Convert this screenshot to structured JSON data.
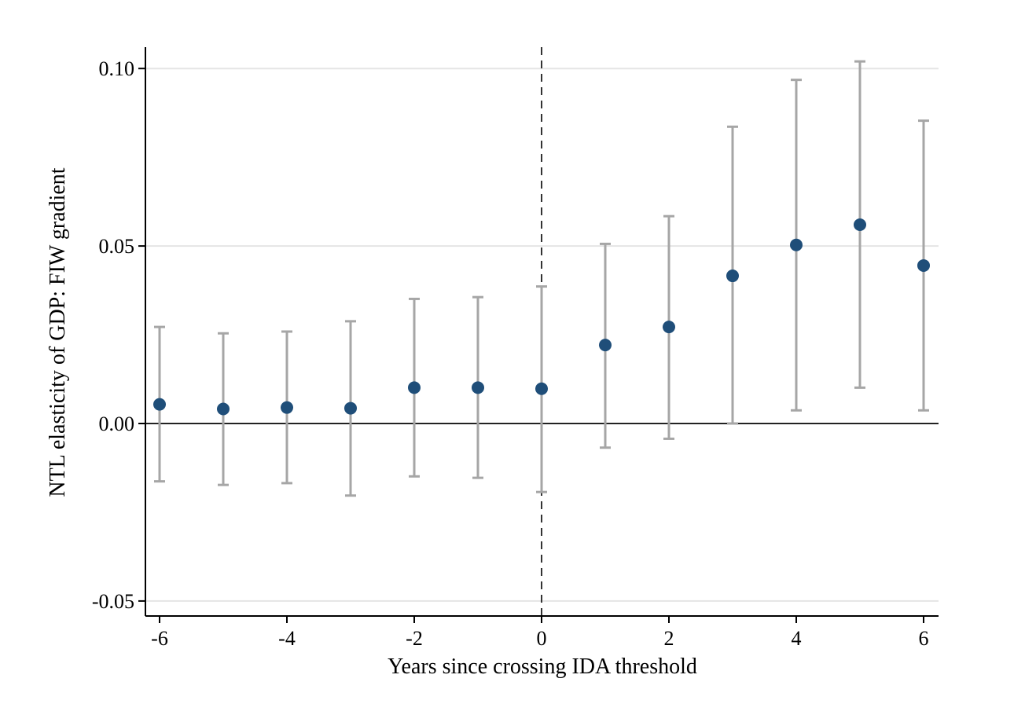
{
  "chart_data": {
    "type": "scatter",
    "title": "",
    "xlabel": "Years since crossing IDA threshold",
    "ylabel": "NTL elasticity of GDP: FIW gradient",
    "xlim": [
      -6.2,
      6.2
    ],
    "ylim": [
      -0.054,
      0.106
    ],
    "x_ticks": [
      -6,
      -4,
      -2,
      0,
      2,
      4,
      6
    ],
    "x_tick_labels": [
      "-6",
      "-4",
      "-2",
      "0",
      "2",
      "4",
      "6"
    ],
    "y_ticks": [
      -0.05,
      0.0,
      0.05,
      0.1
    ],
    "y_tick_labels": [
      "-0.05",
      "0.00",
      "0.05",
      "0.10"
    ],
    "grid": "horizontal",
    "reference_lines": {
      "x": 0,
      "y": 0
    },
    "points": [
      {
        "x": -6,
        "y": 0.0054,
        "lo": -0.0163,
        "hi": 0.0272
      },
      {
        "x": -5,
        "y": 0.0041,
        "lo": -0.0173,
        "hi": 0.0254
      },
      {
        "x": -4,
        "y": 0.0045,
        "lo": -0.0168,
        "hi": 0.0259
      },
      {
        "x": -3,
        "y": 0.0043,
        "lo": -0.0203,
        "hi": 0.0288
      },
      {
        "x": -2,
        "y": 0.0101,
        "lo": -0.0149,
        "hi": 0.0351
      },
      {
        "x": -1,
        "y": 0.0101,
        "lo": -0.0153,
        "hi": 0.0356
      },
      {
        "x": 0,
        "y": 0.0098,
        "lo": -0.0193,
        "hi": 0.0386
      },
      {
        "x": 1,
        "y": 0.0221,
        "lo": -0.0068,
        "hi": 0.0506
      },
      {
        "x": 2,
        "y": 0.0272,
        "lo": -0.0043,
        "hi": 0.0584
      },
      {
        "x": 3,
        "y": 0.0416,
        "lo": 0.0,
        "hi": 0.0836
      },
      {
        "x": 4,
        "y": 0.0503,
        "lo": 0.0037,
        "hi": 0.0968
      },
      {
        "x": 5,
        "y": 0.056,
        "lo": 0.0101,
        "hi": 0.102
      },
      {
        "x": 6,
        "y": 0.0445,
        "lo": 0.0037,
        "hi": 0.0853
      }
    ],
    "colors": {
      "marker": "#1f4e79",
      "error_bar": "#a6a6a6",
      "grid": "#e5e5e5",
      "axis": "#000000",
      "zero_line": "#222222",
      "dashed_line": "#333333"
    }
  }
}
